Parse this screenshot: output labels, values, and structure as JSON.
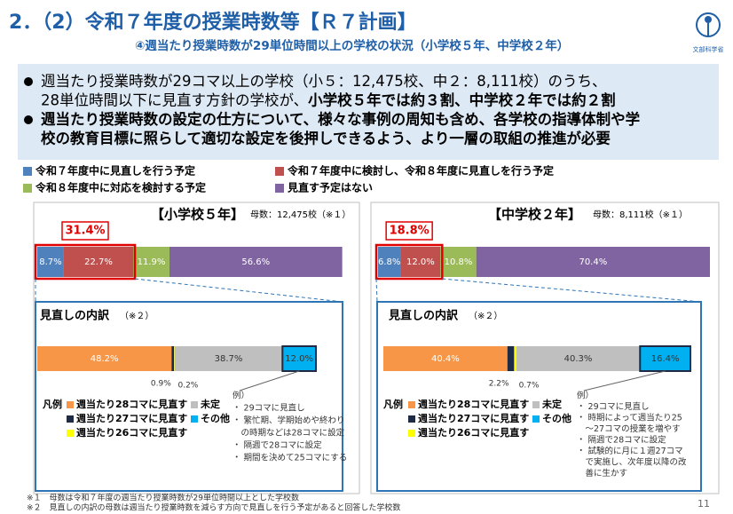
{
  "header": {
    "title": "2．（2）令和７年度の授業時数等【Ｒ７計画】",
    "subtitle": "④週当たり授業時数が29単位時間以上の学校の状況（小学校５年、中学校２年）",
    "logo": "文部科学省"
  },
  "bullets": [
    {
      "lines": [
        [
          {
            "text": "週当たり授業時数が29コマ以上の学校（小５：12,475校、中２：8,111校）のうち、",
            "bold": false
          }
        ],
        [
          {
            "text": "28単位時間以下に見直す方針の学校が、",
            "bold": false
          },
          {
            "text": "小学校５年では約３割、中学校２年では約２割",
            "bold": true
          }
        ]
      ]
    },
    {
      "lines": [
        [
          {
            "text": "週当たり授業時数の設定の仕方について、様々な事例の周知も含め、各学校の指導体制や学",
            "bold": true
          }
        ],
        [
          {
            "text": "校の教育目標に照らして適切な設定を後押しできるよう、より一層の取組の推進が必要",
            "bold": true
          }
        ]
      ]
    }
  ],
  "chart_data": [
    {
      "type": "bar",
      "orientation": "horizontal",
      "stacked": true,
      "title": "【小学校５年】",
      "subtitle": "母数：12,475校（※１）",
      "annotation": "31.4%",
      "xlim": [
        0,
        100
      ],
      "series": [
        {
          "name": "令和７年度中に見直しを行う予定",
          "color": "#4f81bd",
          "values": [
            8.7
          ],
          "value_labels": [
            "8.7%"
          ]
        },
        {
          "name": "令和７年度中に検討し、令和８年度に見直しを行う予定",
          "color": "#c0504d",
          "values": [
            22.7
          ],
          "value_labels": [
            "22.7%"
          ]
        },
        {
          "name": "令和８年度中に対応を検討する予定",
          "color": "#9bbb59",
          "values": [
            11.9
          ],
          "value_labels": [
            "11.9%"
          ]
        },
        {
          "name": "見直す予定はない",
          "color": "#8064a2",
          "values": [
            56.6
          ],
          "value_labels": [
            "56.6%"
          ]
        }
      ]
    },
    {
      "type": "bar",
      "orientation": "horizontal",
      "stacked": true,
      "title": "見直しの内訳",
      "subtitle": "（※２）",
      "legend_title": "凡例",
      "xlim": [
        0,
        100
      ],
      "series": [
        {
          "name": "週当たり28コマに見直す",
          "color": "#f79646",
          "values": [
            48.2
          ],
          "value_labels": [
            "48.2%"
          ]
        },
        {
          "name": "週当たり27コマに見直す",
          "color": "#1f2a44",
          "values": [
            0.9
          ],
          "value_labels": [
            "0.9%"
          ]
        },
        {
          "name": "週当たり26コマに見直す",
          "color": "#ffff00",
          "values": [
            0.2
          ],
          "value_labels": [
            "0.2%"
          ]
        },
        {
          "name": "未定",
          "color": "#bfbfbf",
          "values": [
            38.7
          ],
          "value_labels": [
            "38.7%"
          ]
        },
        {
          "name": "その他",
          "color": "#00b0f0",
          "values": [
            12.0
          ],
          "value_labels": [
            "12.0%"
          ]
        }
      ],
      "notes": [
        "例）",
        "・ 29コマに見直し",
        "・ 繁忙期、学期始めや終わり",
        "　の時期などは28コマに設定",
        "・ 隔週で28コマに設定",
        "・ 期間を決めて25コマにする"
      ]
    },
    {
      "type": "bar",
      "orientation": "horizontal",
      "stacked": true,
      "title": "【中学校２年】",
      "subtitle": "母数：8,111校（※１）",
      "annotation": "18.8%",
      "xlim": [
        0,
        100
      ],
      "series": [
        {
          "name": "令和７年度中に見直しを行う予定",
          "color": "#4f81bd",
          "values": [
            6.8
          ],
          "value_labels": [
            "6.8%"
          ]
        },
        {
          "name": "令和７年度中に検討し、令和８年度に見直しを行う予定",
          "color": "#c0504d",
          "values": [
            12.0
          ],
          "value_labels": [
            "12.0%"
          ]
        },
        {
          "name": "令和８年度中に対応を検討する予定",
          "color": "#9bbb59",
          "values": [
            10.8
          ],
          "value_labels": [
            "10.8%"
          ]
        },
        {
          "name": "見直す予定はない",
          "color": "#8064a2",
          "values": [
            70.4
          ],
          "value_labels": [
            "70.4%"
          ]
        }
      ]
    },
    {
      "type": "bar",
      "orientation": "horizontal",
      "stacked": true,
      "title": "見直しの内訳",
      "subtitle": "（※２）",
      "legend_title": "凡例",
      "xlim": [
        0,
        100
      ],
      "series": [
        {
          "name": "週当たり28コマに見直す",
          "color": "#f79646",
          "values": [
            40.4
          ],
          "value_labels": [
            "40.4%"
          ]
        },
        {
          "name": "週当たり27コマに見直す",
          "color": "#1f2a44",
          "values": [
            2.2
          ],
          "value_labels": [
            "2.2%"
          ]
        },
        {
          "name": "週当たり26コマに見直す",
          "color": "#ffff00",
          "values": [
            0.7
          ],
          "value_labels": [
            "0.7%"
          ]
        },
        {
          "name": "未定",
          "color": "#bfbfbf",
          "values": [
            40.3
          ],
          "value_labels": [
            "40.3%"
          ]
        },
        {
          "name": "その他",
          "color": "#00b0f0",
          "values": [
            16.4
          ],
          "value_labels": [
            "16.4%"
          ]
        }
      ],
      "notes": [
        "例）",
        "・ 29コマに見直し",
        "・ 時期によって週当たり25",
        "　～27コマの授業を増やす",
        "・ 隔週で28コマに設定",
        "・ 試験的に月に１週27コマ",
        "　で実施し、次年度以降の改",
        "　善に生かす"
      ]
    }
  ],
  "footnotes": [
    "※１　母数は令和７年度の週当たり授業時数が29単位時間以上とした学校数",
    "※２　見直しの内訳の母数は週当たり授業時数を減らす方向で見直しを行う予定があると回答した学校数"
  ],
  "page_number": "11"
}
